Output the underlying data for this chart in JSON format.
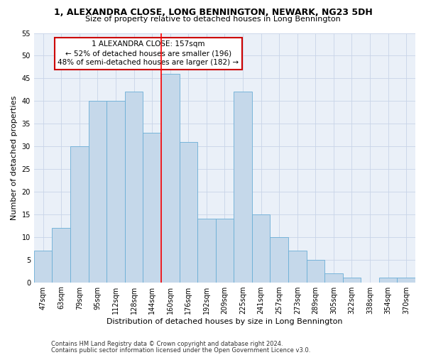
{
  "title": "1, ALEXANDRA CLOSE, LONG BENNINGTON, NEWARK, NG23 5DH",
  "subtitle": "Size of property relative to detached houses in Long Bennington",
  "xlabel": "Distribution of detached houses by size in Long Bennington",
  "ylabel": "Number of detached properties",
  "categories": [
    "47sqm",
    "63sqm",
    "79sqm",
    "95sqm",
    "112sqm",
    "128sqm",
    "144sqm",
    "160sqm",
    "176sqm",
    "192sqm",
    "209sqm",
    "225sqm",
    "241sqm",
    "257sqm",
    "273sqm",
    "289sqm",
    "305sqm",
    "322sqm",
    "338sqm",
    "354sqm",
    "370sqm"
  ],
  "values": [
    7,
    12,
    30,
    40,
    40,
    42,
    33,
    46,
    31,
    14,
    14,
    42,
    15,
    10,
    7,
    5,
    2,
    1,
    0,
    1,
    1
  ],
  "bar_color": "#c5d8ea",
  "bar_edge_color": "#6aaed6",
  "annotation_text": "1 ALEXANDRA CLOSE: 157sqm\n← 52% of detached houses are smaller (196)\n48% of semi-detached houses are larger (182) →",
  "annotation_box_color": "#ffffff",
  "annotation_box_edge_color": "#cc0000",
  "ylim": [
    0,
    55
  ],
  "yticks": [
    0,
    5,
    10,
    15,
    20,
    25,
    30,
    35,
    40,
    45,
    50,
    55
  ],
  "grid_color": "#c8d4e8",
  "bg_color": "#eaf0f8",
  "footer1": "Contains HM Land Registry data © Crown copyright and database right 2024.",
  "footer2": "Contains public sector information licensed under the Open Government Licence v3.0.",
  "title_fontsize": 9,
  "subtitle_fontsize": 8,
  "xlabel_fontsize": 8,
  "ylabel_fontsize": 8,
  "tick_fontsize": 7,
  "annotation_fontsize": 7.5,
  "footer_fontsize": 6
}
